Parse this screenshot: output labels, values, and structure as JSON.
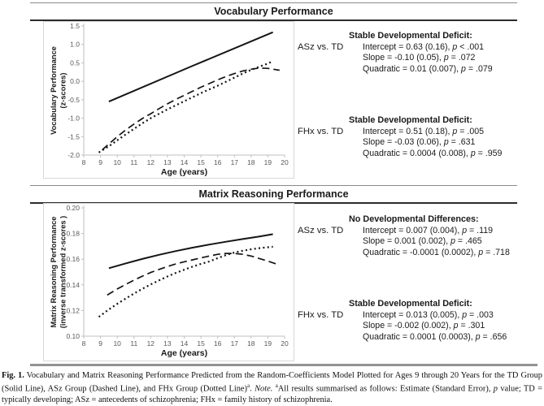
{
  "figure": {
    "p_symbol": "p",
    "panels": [
      {
        "title": "Vocabulary Performance",
        "annotations": [
          {
            "comparison": "ASz vs. TD",
            "heading": "Stable Developmental Deficit:",
            "stats": [
              {
                "lhs": "Intercept = 0.63 (0.16), ",
                "rhs": " < .001"
              },
              {
                "lhs": "Slope = -0.10 (0.05), ",
                "rhs": " = .072"
              },
              {
                "lhs": "Quadratic = 0.01 (0.007), ",
                "rhs": " = .079"
              }
            ]
          },
          {
            "comparison": "FHx vs. TD",
            "heading": "Stable Developmental Deficit:",
            "stats": [
              {
                "lhs": "Intercept = 0.51 (0.18), ",
                "rhs": " = .005"
              },
              {
                "lhs": "Slope = -0.03 (0.06), ",
                "rhs": " = .631"
              },
              {
                "lhs": "Quadratic = 0.0004 (0.008), ",
                "rhs": " = .959"
              }
            ]
          }
        ]
      },
      {
        "title": "Matrix Reasoning Performance",
        "annotations": [
          {
            "comparison": "ASz vs. TD",
            "heading": "No Developmental Differences:",
            "stats": [
              {
                "lhs": "Intercept = 0.007 (0.004), ",
                "rhs": " = .119"
              },
              {
                "lhs": "Slope = 0.001 (0.002), ",
                "rhs": " = .465"
              },
              {
                "lhs": "Quadratic = -0.0001 (0.0002), ",
                "rhs": " = .718"
              }
            ]
          },
          {
            "comparison": "FHx vs. TD",
            "heading": "Stable Developmental Deficit:",
            "stats": [
              {
                "lhs": "Intercept = 0.013 (0.005), ",
                "rhs": " = .003"
              },
              {
                "lhs": "Slope = -0.002 (0.002), ",
                "rhs": " = .301"
              },
              {
                "lhs": "Quadratic = 0.0001 (0.0003), ",
                "rhs": " = .656"
              }
            ]
          }
        ]
      }
    ],
    "caption": {
      "fig_label": "Fig. 1.",
      "body1": " Vocabulary and Matrix Reasoning Performance Predicted from the Random-Coefficients Model Plotted for Ages 9 through 20 Years for the TD Group (Solid Line), ASz Group (Dashed Line), and FHx Group (Dotted Line)",
      "sup1": "a",
      "mid": ". ",
      "note_label": "Note. ",
      "sup2": "a",
      "body2": "All results summarised as follows: Estimate (Standard Error), ",
      "body3": " value; TD = typically developing; ASz = antecedents of schizophrenia; FHx = family history of schizophrenia."
    }
  },
  "chart_data": [
    {
      "type": "line",
      "title": "Vocabulary Performance",
      "xlabel": "Age (years)",
      "ylabel_lines": [
        "Vocabulary Performance",
        "(z-scores)"
      ],
      "xlim": [
        8,
        20
      ],
      "ylim": [
        -2.0,
        1.5
      ],
      "grid": false,
      "legend": "none (line styles identified in caption)",
      "margins": {
        "l": 49,
        "r": 11,
        "t": 5,
        "b": 28
      },
      "xticks": {
        "values": [
          8,
          9,
          10,
          11,
          12,
          13,
          14,
          15,
          16,
          17,
          18,
          19,
          20
        ],
        "labels": [
          "8",
          "9",
          "10",
          "11",
          "12",
          "13",
          "14",
          "15",
          "16",
          "17",
          "18",
          "19",
          "20"
        ]
      },
      "yticks": {
        "values": [
          1.5,
          1.0,
          0.5,
          0.0,
          -0.5,
          -1.0,
          -1.5,
          -2.0
        ],
        "labels": [
          "1.5",
          "1.0",
          "0.5",
          "0.0",
          "-0.5",
          "-1.0",
          "-1.5",
          "-2.0"
        ]
      },
      "series": [
        {
          "name": "TD Group (Solid Line)",
          "style": "solid",
          "points": [
            [
              9.5,
              -0.55
            ],
            [
              14.4,
              0.4
            ],
            [
              19.3,
              1.33
            ]
          ]
        },
        {
          "name": "ASz Group (Dashed Line)",
          "style": "dashed",
          "points": [
            [
              9.1,
              -1.86
            ],
            [
              9.5,
              -1.7
            ],
            [
              10,
              -1.5
            ],
            [
              10.5,
              -1.32
            ],
            [
              11,
              -1.16
            ],
            [
              11.5,
              -1.01
            ],
            [
              12,
              -0.88
            ],
            [
              12.5,
              -0.74
            ],
            [
              13,
              -0.61
            ],
            [
              13.5,
              -0.49
            ],
            [
              14,
              -0.38
            ],
            [
              14.5,
              -0.27
            ],
            [
              15,
              -0.16
            ],
            [
              15.5,
              -0.06
            ],
            [
              16,
              0.04
            ],
            [
              16.5,
              0.13
            ],
            [
              17,
              0.21
            ],
            [
              17.5,
              0.28
            ],
            [
              18,
              0.33
            ],
            [
              18.5,
              0.36
            ],
            [
              19,
              0.35
            ],
            [
              19.3,
              0.33
            ],
            [
              19.7,
              0.3
            ]
          ]
        },
        {
          "name": "FHx Group (Dotted Line)",
          "style": "dotted",
          "points": [
            [
              8.9,
              -1.93
            ],
            [
              9.5,
              -1.76
            ],
            [
              10,
              -1.6
            ],
            [
              10.5,
              -1.44
            ],
            [
              11,
              -1.29
            ],
            [
              11.5,
              -1.14
            ],
            [
              12,
              -1.0
            ],
            [
              12.5,
              -0.88
            ],
            [
              13,
              -0.76
            ],
            [
              13.5,
              -0.65
            ],
            [
              14,
              -0.54
            ],
            [
              14.5,
              -0.43
            ],
            [
              15,
              -0.32
            ],
            [
              15.5,
              -0.22
            ],
            [
              16,
              -0.12
            ],
            [
              16.5,
              -0.01
            ],
            [
              17,
              0.1
            ],
            [
              17.5,
              0.21
            ],
            [
              18,
              0.31
            ],
            [
              18.5,
              0.4
            ],
            [
              19,
              0.48
            ],
            [
              19.3,
              0.55
            ]
          ]
        }
      ]
    },
    {
      "type": "line",
      "title": "Matrix Reasoning Performance",
      "xlabel": "Age (years)",
      "ylabel_lines": [
        "Matrix Reasoning Performance",
        "(inverse transformed z-scores )"
      ],
      "xlim": [
        8,
        20
      ],
      "ylim": [
        0.1,
        0.2
      ],
      "grid": false,
      "legend": "none (line styles identified in caption)",
      "margins": {
        "l": 49,
        "r": 11,
        "t": 5,
        "b": 30
      },
      "xticks": {
        "values": [
          8,
          9,
          10,
          11,
          12,
          13,
          14,
          15,
          16,
          17,
          18,
          19,
          20
        ],
        "labels": [
          "8",
          "9",
          "10",
          "11",
          "12",
          "13",
          "14",
          "15",
          "16",
          "17",
          "18",
          "19",
          "20"
        ]
      },
      "yticks": {
        "values": [
          0.2,
          0.18,
          0.16,
          0.14,
          0.12,
          0.1
        ],
        "labels": [
          "0.20",
          "0.18",
          "0.16",
          "0.14",
          "0.12",
          "0.10"
        ]
      },
      "series": [
        {
          "name": "TD Group (Solid Line)",
          "style": "solid",
          "points": [
            [
              9.5,
              0.153
            ],
            [
              10.5,
              0.1567
            ],
            [
              11.5,
              0.1602
            ],
            [
              12.5,
              0.1634
            ],
            [
              13.5,
              0.1663
            ],
            [
              14.5,
              0.169
            ],
            [
              15.5,
              0.1714
            ],
            [
              16.5,
              0.1736
            ],
            [
              17.5,
              0.1757
            ],
            [
              18.5,
              0.1777
            ],
            [
              19.3,
              0.1795
            ]
          ]
        },
        {
          "name": "ASz Group (Dashed Line)",
          "style": "dashed",
          "points": [
            [
              9.4,
              0.132
            ],
            [
              10,
              0.1368
            ],
            [
              10.5,
              0.1403
            ],
            [
              11,
              0.1437
            ],
            [
              11.5,
              0.1468
            ],
            [
              12,
              0.1496
            ],
            [
              12.5,
              0.152
            ],
            [
              13,
              0.1543
            ],
            [
              13.5,
              0.1563
            ],
            [
              14,
              0.158
            ],
            [
              14.5,
              0.1595
            ],
            [
              15,
              0.161
            ],
            [
              15.5,
              0.1625
            ],
            [
              16,
              0.1638
            ],
            [
              16.5,
              0.1645
            ],
            [
              17,
              0.1645
            ],
            [
              17.5,
              0.1638
            ],
            [
              18,
              0.1625
            ],
            [
              18.5,
              0.1605
            ],
            [
              19,
              0.1585
            ],
            [
              19.4,
              0.1568
            ],
            [
              19.7,
              0.1555
            ]
          ]
        },
        {
          "name": "FHx Group (Dotted Line)",
          "style": "dotted",
          "points": [
            [
              8.9,
              0.115
            ],
            [
              9.5,
              0.1208
            ],
            [
              10,
              0.1252
            ],
            [
              10.5,
              0.1293
            ],
            [
              11,
              0.1332
            ],
            [
              11.5,
              0.1369
            ],
            [
              12,
              0.1403
            ],
            [
              12.5,
              0.1435
            ],
            [
              13,
              0.1465
            ],
            [
              13.5,
              0.1493
            ],
            [
              14,
              0.1518
            ],
            [
              14.5,
              0.1542
            ],
            [
              15,
              0.1563
            ],
            [
              15.5,
              0.1582
            ],
            [
              16,
              0.1608
            ],
            [
              16.5,
              0.1632
            ],
            [
              17,
              0.1652
            ],
            [
              17.5,
              0.1666
            ],
            [
              18,
              0.1677
            ],
            [
              18.5,
              0.1686
            ],
            [
              19,
              0.1693
            ],
            [
              19.3,
              0.1697
            ]
          ]
        }
      ]
    }
  ]
}
